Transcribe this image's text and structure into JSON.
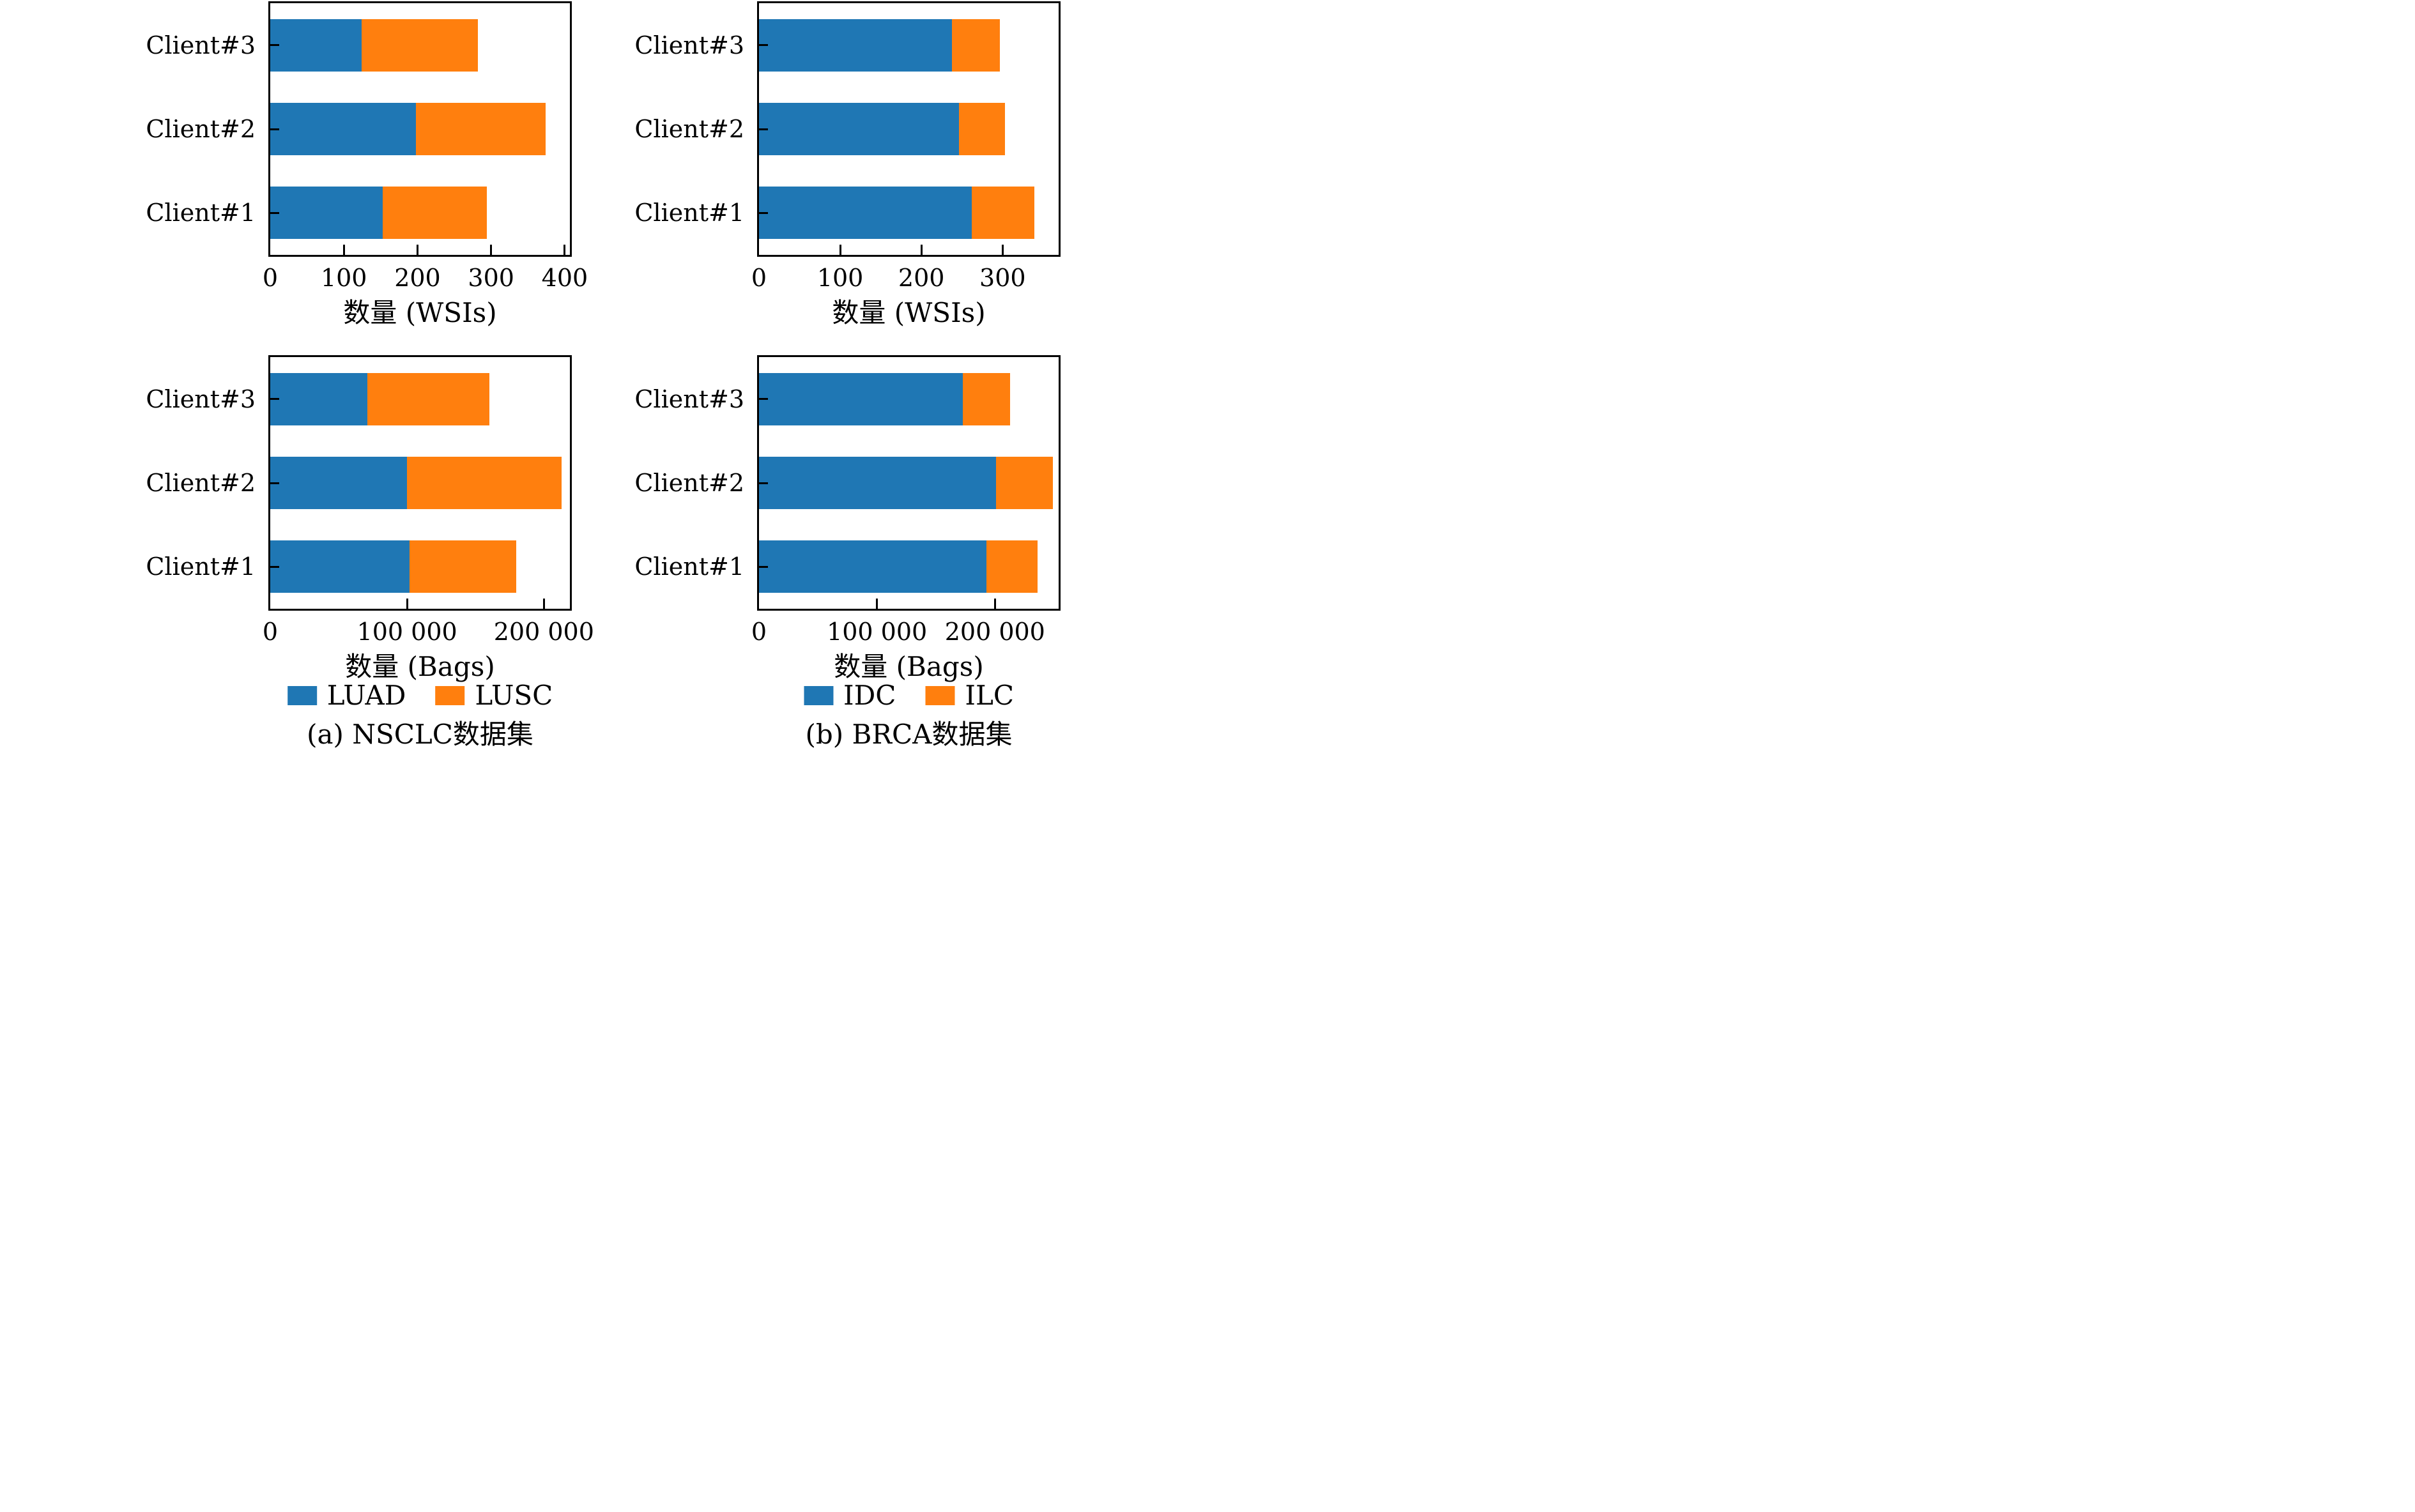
{
  "figure": {
    "background": "#ffffff",
    "text_color": "#000000",
    "accent_blue": "#1f77b4",
    "accent_orange": "#ff7f0e"
  },
  "chart_data": [
    {
      "id": "nsclc-wsis",
      "type": "stacked_barh",
      "panel": "top-left",
      "categories": [
        "Client#1",
        "Client#2",
        "Client#3"
      ],
      "series": [
        {
          "name": "LUAD",
          "color": "#1f77b4",
          "values": [
            153,
            198,
            124
          ]
        },
        {
          "name": "LUSC",
          "color": "#ff7f0e",
          "values": [
            141,
            176,
            158
          ]
        }
      ],
      "xlabel": "数量 (WSIs)",
      "xlim": [
        0,
        407
      ],
      "xticks": [
        {
          "value": 0,
          "label": "0"
        },
        {
          "value": 100,
          "label": "100"
        },
        {
          "value": 200,
          "label": "200"
        },
        {
          "value": 300,
          "label": "300"
        },
        {
          "value": 400,
          "label": "400"
        }
      ],
      "grid": false,
      "tick_direction": "in"
    },
    {
      "id": "brca-wsis",
      "type": "stacked_barh",
      "panel": "top-right",
      "categories": [
        "Client#1",
        "Client#2",
        "Client#3"
      ],
      "series": [
        {
          "name": "IDC",
          "color": "#1f77b4",
          "values": [
            262,
            246,
            238
          ]
        },
        {
          "name": "ILC",
          "color": "#ff7f0e",
          "values": [
            77,
            57,
            59
          ]
        }
      ],
      "xlabel": "数量 (WSIs)",
      "xlim": [
        0,
        369
      ],
      "xticks": [
        {
          "value": 0,
          "label": "0"
        },
        {
          "value": 100,
          "label": "100"
        },
        {
          "value": 200,
          "label": "200"
        },
        {
          "value": 300,
          "label": "300"
        }
      ],
      "grid": false,
      "tick_direction": "in"
    },
    {
      "id": "nsclc-bags",
      "type": "stacked_barh",
      "panel": "bottom-left",
      "categories": [
        "Client#1",
        "Client#2",
        "Client#3"
      ],
      "series": [
        {
          "name": "LUAD",
          "color": "#1f77b4",
          "values": [
            102000,
            100000,
            71000
          ]
        },
        {
          "name": "LUSC",
          "color": "#ff7f0e",
          "values": [
            78000,
            113000,
            89000
          ]
        }
      ],
      "xlabel": "数量 (Bags)",
      "xlim": [
        0,
        219000
      ],
      "xticks": [
        {
          "value": 0,
          "label": "0"
        },
        {
          "value": 100000,
          "label": "100 000"
        },
        {
          "value": 200000,
          "label": "200 000"
        }
      ],
      "grid": false,
      "tick_direction": "in"
    },
    {
      "id": "brca-bags",
      "type": "stacked_barh",
      "panel": "bottom-right",
      "categories": [
        "Client#1",
        "Client#2",
        "Client#3"
      ],
      "series": [
        {
          "name": "IDC",
          "color": "#1f77b4",
          "values": [
            193000,
            201000,
            173000
          ]
        },
        {
          "name": "ILC",
          "color": "#ff7f0e",
          "values": [
            43000,
            48000,
            40000
          ]
        }
      ],
      "xlabel": "数量 (Bags)",
      "xlim": [
        0,
        254000
      ],
      "xticks": [
        {
          "value": 0,
          "label": "0"
        },
        {
          "value": 100000,
          "label": "100 000"
        },
        {
          "value": 200000,
          "label": "200 000"
        }
      ],
      "grid": false,
      "tick_direction": "in"
    }
  ],
  "legends": [
    {
      "column": 0,
      "items": [
        {
          "label": "LUAD",
          "color": "#1f77b4"
        },
        {
          "label": "LUSC",
          "color": "#ff7f0e"
        }
      ]
    },
    {
      "column": 1,
      "items": [
        {
          "label": "IDC",
          "color": "#1f77b4"
        },
        {
          "label": "ILC",
          "color": "#ff7f0e"
        }
      ]
    }
  ],
  "captions": [
    {
      "column": 0,
      "label": "(a) NSCLC数据集"
    },
    {
      "column": 1,
      "label": "(b) BRCA数据集"
    }
  ]
}
